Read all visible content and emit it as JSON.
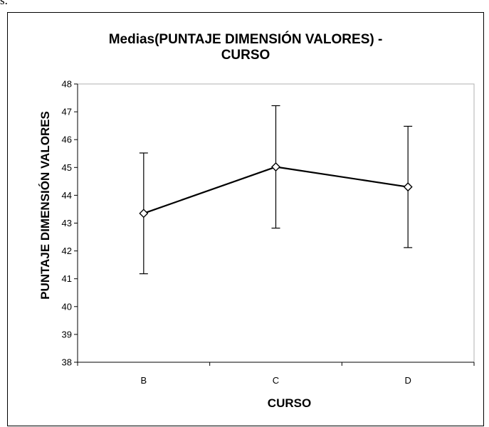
{
  "page_top_text": "s.",
  "chart_data": {
    "type": "line",
    "title": "Medias(PUNTAJE DIMENSIÓN VALORES) - CURSO",
    "title_lines": [
      "Medias(PUNTAJE DIMENSIÓN VALORES) -",
      "CURSO"
    ],
    "xlabel": "CURSO",
    "ylabel": "PUNTAJE DIMENSIÓN VALORES",
    "categories": [
      "B",
      "C",
      "D"
    ],
    "series": [
      {
        "values": [
          43.35,
          45.02,
          44.3
        ],
        "error_upper": [
          45.52,
          47.22,
          46.48
        ],
        "error_lower": [
          41.18,
          42.82,
          42.12
        ],
        "marker": "diamond"
      }
    ],
    "ylim": [
      38,
      48
    ],
    "yticks": [
      "38",
      "39",
      "40",
      "41",
      "42",
      "43",
      "44",
      "45",
      "46",
      "47",
      "48"
    ],
    "grid": false,
    "legend": "none",
    "line_color": "#000000",
    "plot_border_color": "#b0b0b0"
  }
}
